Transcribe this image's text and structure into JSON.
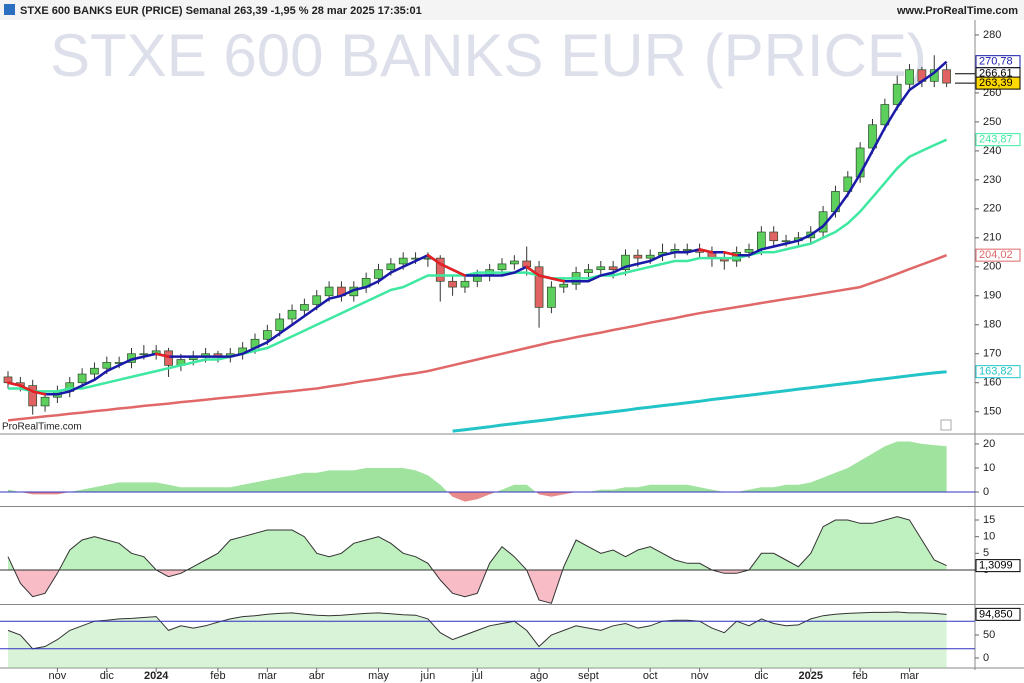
{
  "header": {
    "title": "STXE 600 BANKS EUR (PRICE) Semanal 263,39 -1,95 % 28 mar 2025 17:35:01",
    "site": "www.ProRealTime.com"
  },
  "chart_data": [
    {
      "type": "candlestick",
      "watermark": "STXE 600 BANKS EUR (PRICE)",
      "source": "ProRealTime.com",
      "categories": [
        null,
        null,
        null,
        null,
        "nov",
        null,
        null,
        null,
        "dic",
        null,
        null,
        null,
        "2024",
        null,
        null,
        null,
        null,
        "feb",
        null,
        null,
        null,
        "mar",
        null,
        null,
        null,
        "abr",
        null,
        null,
        null,
        null,
        "may",
        null,
        null,
        null,
        "jun",
        null,
        null,
        null,
        "jul",
        null,
        null,
        null,
        null,
        "ago",
        null,
        null,
        null,
        "sept",
        null,
        null,
        null,
        null,
        "oct",
        null,
        null,
        null,
        "nov",
        null,
        null,
        null,
        null,
        "dic",
        null,
        null,
        null,
        "2025",
        null,
        null,
        null,
        "feb",
        null,
        null,
        null,
        "mar",
        null,
        null,
        null
      ],
      "open": [
        162,
        160,
        159,
        152,
        155,
        157,
        160,
        163,
        165,
        167,
        167,
        170,
        170,
        171,
        166,
        168,
        169,
        170,
        169,
        170,
        172,
        175,
        178,
        182,
        185,
        187,
        190,
        193,
        190,
        193,
        196,
        199,
        201,
        203,
        203,
        203,
        195,
        193,
        195,
        197,
        199,
        201,
        202,
        200,
        186,
        193,
        194,
        198,
        199,
        200,
        199,
        204,
        203,
        204,
        205,
        206,
        206,
        205,
        203,
        202,
        205,
        206,
        212,
        209,
        209,
        210,
        212,
        219,
        226,
        231,
        241,
        249,
        256,
        263,
        268,
        264,
        268
      ],
      "high": [
        164,
        162,
        161,
        157,
        159,
        162,
        165,
        167,
        169,
        169,
        172,
        173,
        173,
        172,
        170,
        171,
        172,
        171,
        172,
        174,
        177,
        180,
        184,
        187,
        189,
        192,
        195,
        195,
        195,
        198,
        201,
        203,
        205,
        205,
        205,
        204,
        197,
        197,
        199,
        201,
        203,
        204,
        207,
        202,
        195,
        196,
        200,
        201,
        202,
        202,
        206,
        206,
        206,
        208,
        208,
        208,
        208,
        207,
        205,
        207,
        208,
        214,
        214,
        211,
        212,
        214,
        221,
        228,
        233,
        243,
        251,
        258,
        266,
        270,
        269,
        273,
        270
      ],
      "low": [
        158,
        157,
        149,
        150,
        153,
        155,
        158,
        161,
        163,
        165,
        165,
        168,
        168,
        162,
        164,
        166,
        167,
        167,
        167,
        168,
        170,
        173,
        176,
        180,
        183,
        185,
        188,
        188,
        188,
        191,
        194,
        197,
        199,
        201,
        200,
        188,
        190,
        191,
        193,
        195,
        197,
        199,
        197,
        179,
        184,
        191,
        192,
        195,
        197,
        196,
        197,
        200,
        201,
        202,
        203,
        204,
        203,
        200,
        199,
        200,
        203,
        204,
        207,
        207,
        207,
        208,
        210,
        217,
        224,
        229,
        239,
        247,
        254,
        261,
        262,
        262,
        262
      ],
      "close": [
        160,
        159,
        152,
        155,
        157,
        160,
        163,
        165,
        167,
        167,
        170,
        170,
        171,
        166,
        168,
        169,
        170,
        169,
        170,
        172,
        175,
        178,
        182,
        185,
        187,
        190,
        193,
        190,
        193,
        196,
        199,
        201,
        203,
        203,
        203,
        195,
        193,
        195,
        197,
        199,
        201,
        202,
        200,
        186,
        193,
        194,
        198,
        199,
        200,
        199,
        204,
        203,
        204,
        205,
        206,
        206,
        205,
        203,
        202,
        205,
        206,
        212,
        209,
        209,
        210,
        212,
        219,
        226,
        231,
        241,
        249,
        256,
        263,
        268,
        264,
        268,
        263.39
      ],
      "up_color": "#5ccf5c",
      "down_color": "#e06262",
      "ylim": [
        143,
        282.4
      ],
      "yticks": [
        150,
        160,
        170,
        180,
        190,
        200,
        210,
        220,
        230,
        240,
        250,
        260,
        270,
        280
      ],
      "series": [
        {
          "color": "#22c4c8",
          "width": 3,
          "values": [
            null,
            null,
            null,
            null,
            null,
            null,
            null,
            null,
            null,
            null,
            null,
            null,
            null,
            null,
            null,
            null,
            null,
            null,
            null,
            null,
            null,
            null,
            null,
            null,
            null,
            null,
            null,
            null,
            null,
            null,
            null,
            null,
            null,
            null,
            null,
            null,
            143.3,
            143.8,
            144.3,
            144.8,
            145.4,
            145.9,
            146.4,
            146.9,
            147.4,
            148,
            148.5,
            149,
            149.5,
            150,
            150.5,
            151.1,
            151.6,
            152.1,
            152.6,
            153.1,
            153.6,
            154.2,
            154.7,
            155.2,
            155.7,
            156.2,
            156.7,
            157.2,
            157.8,
            158.3,
            158.8,
            159.3,
            159.8,
            160.3,
            160.9,
            161.4,
            161.9,
            162.4,
            162.9,
            163.4,
            163.82
          ],
          "last_label": "163,82"
        },
        {
          "color": "#e06868",
          "width": 2.5,
          "values": [
            147,
            147.5,
            147.9,
            148.4,
            148.8,
            149.3,
            149.7,
            150.2,
            150.6,
            151.1,
            151.5,
            152,
            152.4,
            152.8,
            153.3,
            153.7,
            154.1,
            154.6,
            155,
            155.4,
            155.8,
            156.3,
            156.7,
            157.1,
            157.6,
            158,
            158.7,
            159.3,
            160,
            160.7,
            161.3,
            162,
            162.7,
            163.3,
            164,
            165,
            166,
            167,
            168,
            169,
            170,
            171,
            172,
            173,
            174,
            174.8,
            175.7,
            176.5,
            177.3,
            178.2,
            179,
            179.8,
            180.7,
            181.5,
            182.3,
            183.2,
            184,
            184.7,
            185.4,
            186.1,
            186.8,
            187.5,
            188.2,
            188.9,
            189.5,
            190.2,
            190.9,
            191.6,
            192.3,
            193,
            194.5,
            196,
            197.6,
            199.2,
            200.8,
            202.4,
            204.02
          ],
          "last_label": "204,02"
        },
        {
          "color": "#3ee8a0",
          "width": 2.5,
          "values": [
            158,
            158,
            157,
            157,
            157,
            158,
            158,
            159,
            160,
            161,
            162,
            163,
            164,
            165,
            166,
            167,
            168,
            168,
            169,
            170,
            171,
            172,
            174,
            176,
            178,
            180,
            182,
            184,
            186,
            188,
            190,
            192,
            193,
            195,
            197,
            197,
            197,
            197,
            198,
            198,
            198,
            198,
            198,
            197,
            196,
            196,
            196,
            196,
            197,
            197,
            198,
            199,
            200,
            201,
            202,
            202,
            203,
            203,
            203,
            203,
            204,
            205,
            205,
            206,
            207,
            208,
            210,
            212,
            215,
            219,
            224,
            229,
            234,
            238,
            240,
            242,
            243.87
          ],
          "last_label": "243,87"
        },
        {
          "color": "#1a1aa8",
          "down_color": "#e82020",
          "width": 2.5,
          "values": [
            160,
            159,
            157,
            156,
            156,
            157,
            159,
            161,
            164,
            166,
            168,
            169,
            170,
            169,
            169,
            169,
            169,
            169,
            169,
            170,
            172,
            174,
            177,
            180,
            183,
            186,
            189,
            190,
            192,
            193,
            195,
            198,
            200,
            202,
            204,
            201,
            199,
            197,
            197,
            197,
            197,
            198,
            200,
            197,
            196,
            195,
            195,
            195,
            197,
            198,
            200,
            201,
            202,
            204,
            205,
            205,
            206,
            205,
            205,
            204,
            204,
            206,
            207,
            208,
            209,
            211,
            214,
            219,
            225,
            232,
            240,
            248,
            255,
            261,
            264,
            267,
            270.78
          ],
          "last_label": "270,78"
        }
      ],
      "price_labels": [
        {
          "value": 266.61,
          "label": "266,61"
        },
        {
          "value": 263.39,
          "label": "263,39"
        }
      ]
    },
    {
      "type": "area",
      "ylim": [
        -5.4,
        23.3
      ],
      "yticks": [
        0,
        10,
        20
      ],
      "pos_color": "#9fe39f",
      "neg_color": "#e88a8a",
      "values": [
        1,
        0,
        -1,
        -1,
        -1,
        0,
        1,
        2,
        3,
        4,
        4,
        4,
        4,
        3,
        2,
        2,
        2,
        2,
        2,
        3,
        4,
        5,
        6,
        7,
        8,
        8,
        9,
        9,
        9,
        10,
        10,
        10,
        10,
        9,
        7,
        3,
        -2,
        -4,
        -3,
        -1,
        1,
        3,
        3,
        -1,
        -2,
        -1,
        0,
        0,
        1,
        1,
        2,
        2,
        3,
        3,
        3,
        3,
        2,
        1,
        0,
        0,
        1,
        2,
        2,
        3,
        3,
        4,
        6,
        8,
        10,
        13,
        16,
        19,
        21,
        21,
        20,
        19.5,
        19
      ]
    },
    {
      "type": "area",
      "ylim": [
        -9.9,
        18.6
      ],
      "yticks": [
        0,
        5,
        10,
        15
      ],
      "pos_color": "#bff0bf",
      "neg_color": "#f7bcc6",
      "line_color": "#333333",
      "values": [
        4,
        -4,
        -8,
        -7,
        -1,
        6,
        9,
        10,
        9,
        8,
        5,
        4,
        0,
        -2,
        -1,
        1,
        3,
        5,
        9,
        10,
        11,
        12,
        12,
        12,
        10,
        5,
        4,
        5,
        8,
        9,
        10,
        8,
        5,
        4,
        2,
        -3,
        -7,
        -8,
        -7,
        2,
        7,
        4,
        0,
        -9,
        -10,
        1,
        9,
        7,
        5,
        6,
        4,
        6,
        7,
        5,
        3,
        2,
        2,
        0,
        -1,
        -1,
        0,
        5,
        5,
        3,
        1,
        5,
        13,
        15,
        15,
        14,
        14,
        15,
        16,
        15,
        9,
        3,
        1.3099
      ],
      "last_label": "1,3099"
    },
    {
      "type": "oscillator",
      "ylim": [
        -21.7,
        113
      ],
      "yticks": [
        0,
        50
      ],
      "levels": [
        80,
        20
      ],
      "level_color": "#3030c0",
      "line_color": "#333333",
      "fill_color": "#8fdc8f",
      "values": [
        60,
        50,
        20,
        25,
        40,
        60,
        70,
        80,
        82,
        85,
        86,
        88,
        90,
        60,
        70,
        65,
        70,
        78,
        85,
        90,
        92,
        95,
        97,
        98,
        95,
        93,
        92,
        93,
        95,
        97,
        98,
        96,
        94,
        93,
        85,
        55,
        40,
        50,
        60,
        70,
        75,
        80,
        60,
        25,
        50,
        60,
        70,
        65,
        60,
        70,
        75,
        65,
        70,
        80,
        82,
        82,
        80,
        65,
        55,
        80,
        70,
        85,
        75,
        70,
        72,
        85,
        92,
        95,
        97,
        98,
        99,
        99,
        100,
        98,
        98,
        97,
        94.85
      ],
      "last_label": "94,850"
    }
  ]
}
